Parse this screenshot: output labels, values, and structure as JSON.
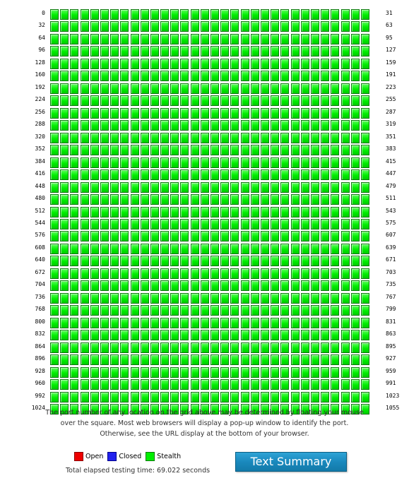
{
  "grid": {
    "rows": [
      {
        "start": "0",
        "end": "31"
      },
      {
        "start": "32",
        "end": "63"
      },
      {
        "start": "64",
        "end": "95"
      },
      {
        "start": "96",
        "end": "127"
      },
      {
        "start": "128",
        "end": "159"
      },
      {
        "start": "160",
        "end": "191"
      },
      {
        "start": "192",
        "end": "223"
      },
      {
        "start": "224",
        "end": "255"
      },
      {
        "start": "256",
        "end": "287"
      },
      {
        "start": "288",
        "end": "319"
      },
      {
        "start": "320",
        "end": "351"
      },
      {
        "start": "352",
        "end": "383"
      },
      {
        "start": "384",
        "end": "415"
      },
      {
        "start": "416",
        "end": "447"
      },
      {
        "start": "448",
        "end": "479"
      },
      {
        "start": "480",
        "end": "511"
      },
      {
        "start": "512",
        "end": "543"
      },
      {
        "start": "544",
        "end": "575"
      },
      {
        "start": "576",
        "end": "607"
      },
      {
        "start": "608",
        "end": "639"
      },
      {
        "start": "640",
        "end": "671"
      },
      {
        "start": "672",
        "end": "703"
      },
      {
        "start": "704",
        "end": "735"
      },
      {
        "start": "736",
        "end": "767"
      },
      {
        "start": "768",
        "end": "799"
      },
      {
        "start": "800",
        "end": "831"
      },
      {
        "start": "832",
        "end": "863"
      },
      {
        "start": "864",
        "end": "895"
      },
      {
        "start": "896",
        "end": "927"
      },
      {
        "start": "928",
        "end": "959"
      },
      {
        "start": "960",
        "end": "991"
      },
      {
        "start": "992",
        "end": "1023"
      },
      {
        "start": "1024",
        "end": "1055"
      }
    ],
    "ports_per_row": 32,
    "port_status_default": "stealth",
    "status_colors": {
      "open": "#ee0000",
      "closed": "#2222ee",
      "stealth": "#00ee00"
    }
  },
  "explanation": "The port number of any location on the grid above may be determined by floating your mouse over the square. Most web browsers will display a pop-up window to identify the port. Otherwise, see the URL display at the bottom of your browser.",
  "legend": {
    "items": [
      {
        "key": "open",
        "label": "Open",
        "color": "#ee0000",
        "border": "#8a0000"
      },
      {
        "key": "closed",
        "label": "Closed",
        "color": "#2222ee",
        "border": "#00008a"
      },
      {
        "key": "stealth",
        "label": "Stealth",
        "color": "#00ee00",
        "border": "#0b7a0b"
      }
    ]
  },
  "elapsed_time": "Total elapsed testing time: 69.022 seconds",
  "text_summary_button": {
    "label": "Text Summary",
    "color": "#1a89bd"
  }
}
